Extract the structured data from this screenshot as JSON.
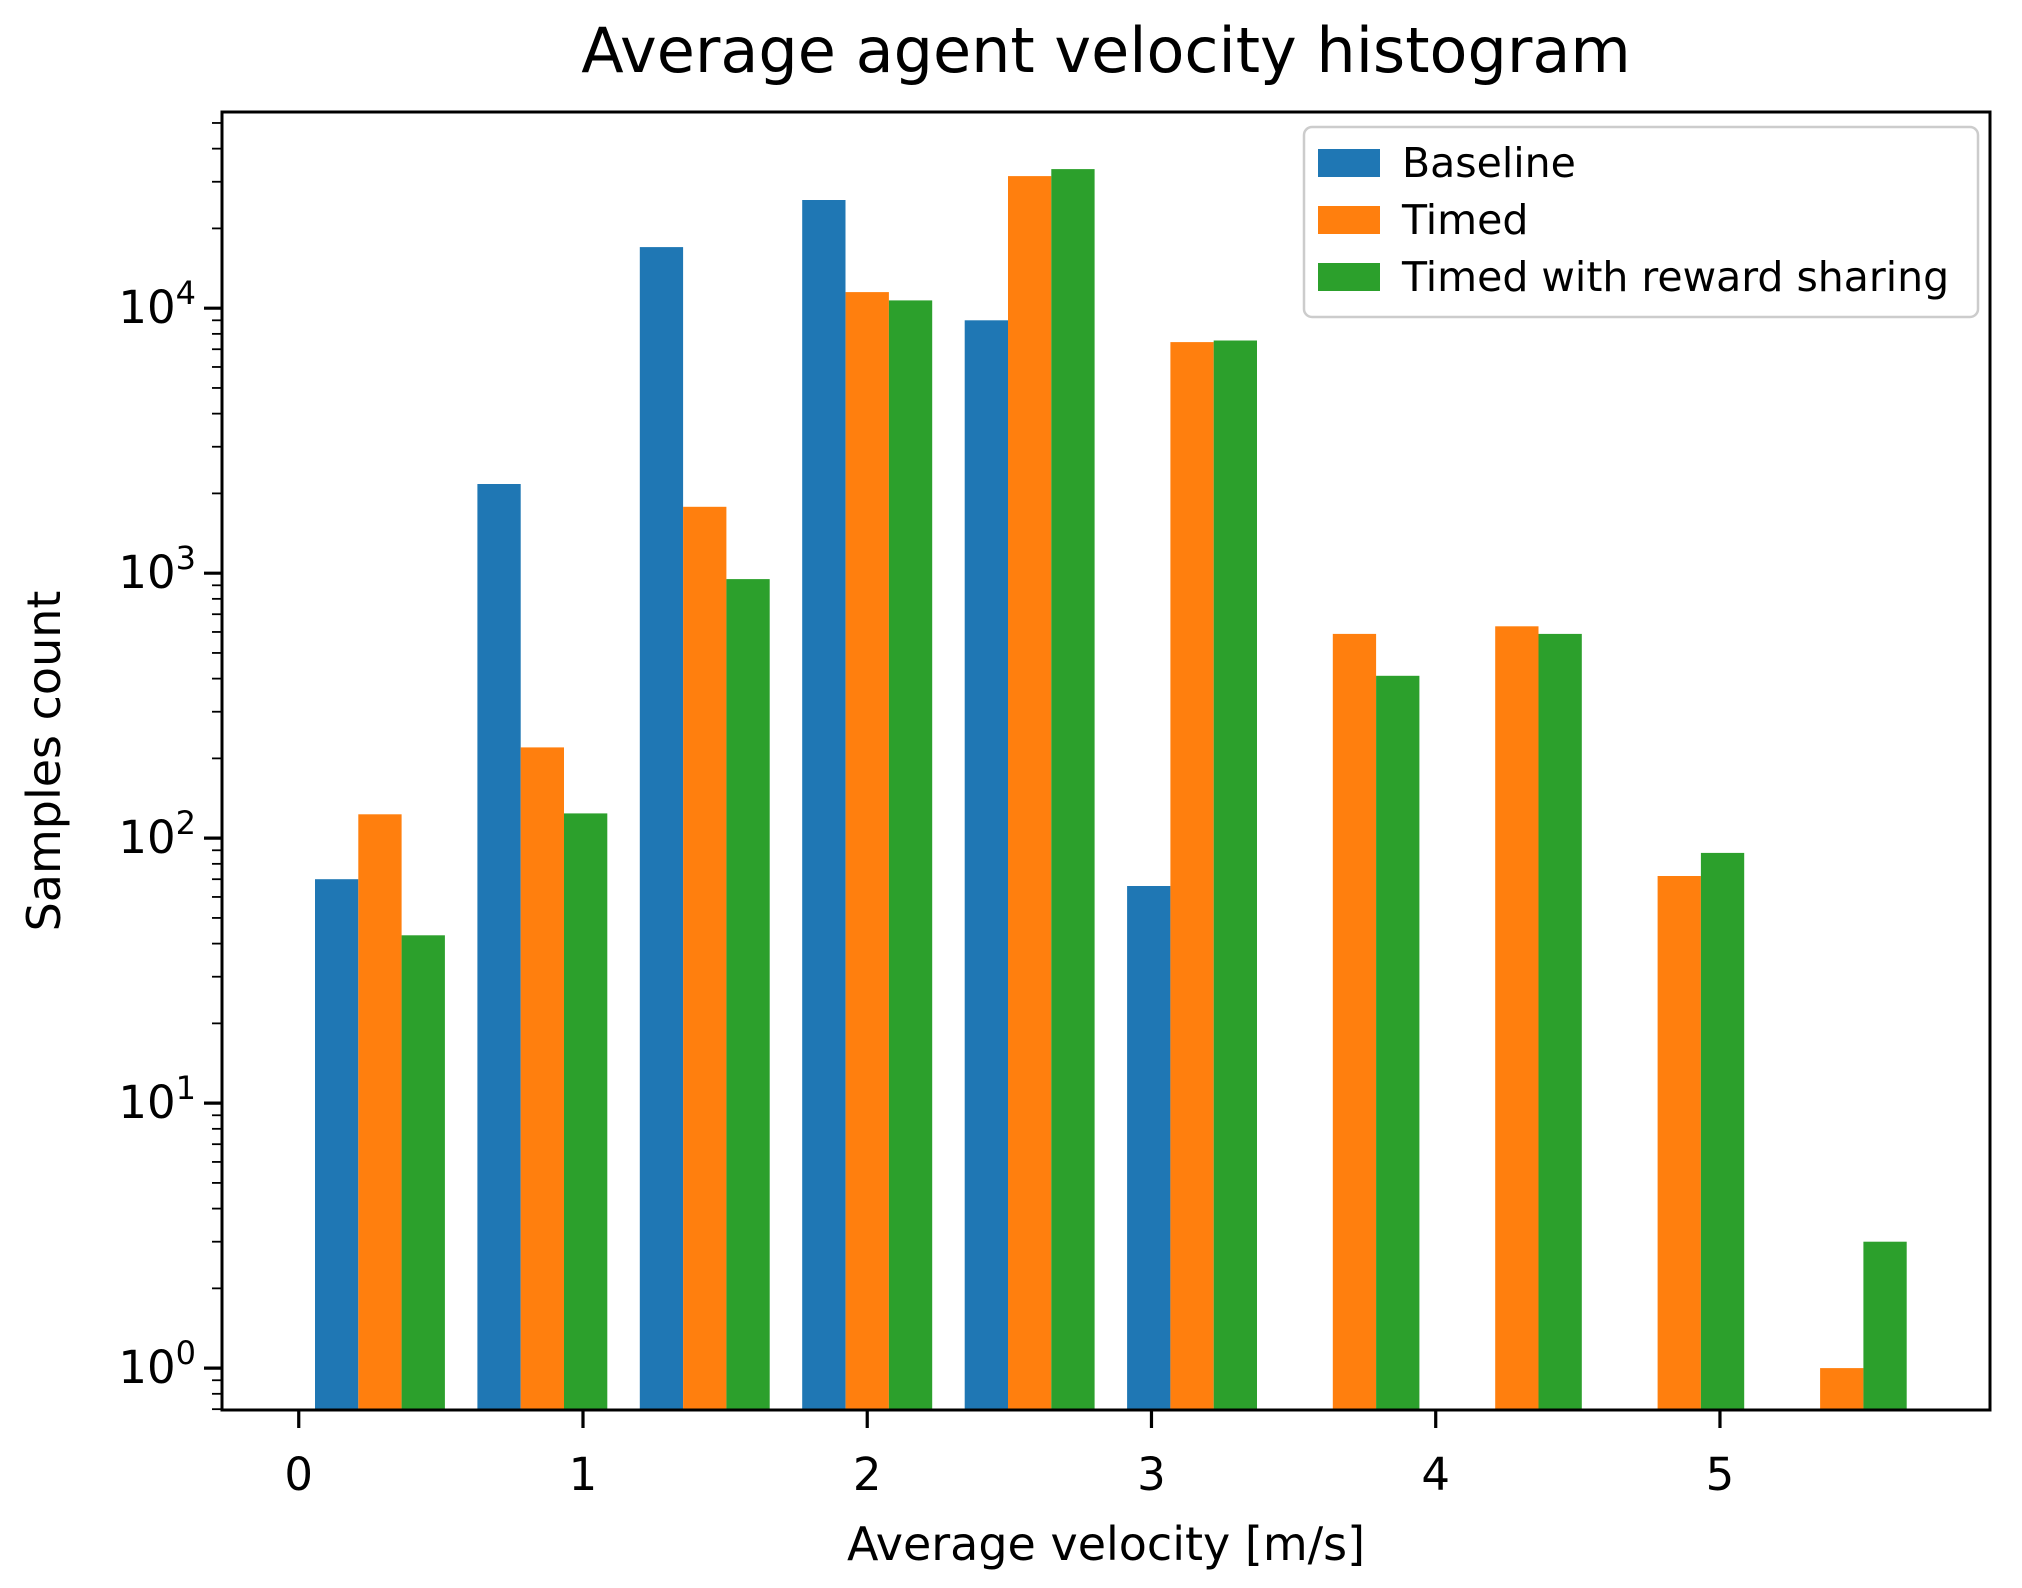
{
  "title": "Average agent velocity histogram",
  "chart_data": {
    "type": "bar",
    "subtype": "grouped-histogram",
    "title": "Average agent velocity histogram",
    "xlabel": "Average velocity [m/s]",
    "ylabel": "Samples count",
    "yscale": "log",
    "grid": false,
    "xlim": [
      -0.27,
      5.95
    ],
    "ylim": [
      0.695,
      55000
    ],
    "xticks": [
      0,
      1,
      2,
      3,
      4,
      5
    ],
    "ytick_exponents": [
      0,
      1,
      2,
      3,
      4
    ],
    "bins": {
      "start": 0.0,
      "width": 0.5714,
      "count": 10,
      "group_fill": 0.8
    },
    "bin_centers": [
      0.29,
      0.86,
      1.43,
      2.0,
      2.57,
      3.14,
      3.71,
      4.29,
      4.86,
      5.43
    ],
    "series": [
      {
        "name": "Baseline",
        "color": "#1f77b4",
        "values": [
          70,
          2170,
          17000,
          25600,
          9000,
          66,
          0,
          0,
          0,
          0
        ]
      },
      {
        "name": "Timed",
        "color": "#ff7f0e",
        "values": [
          123,
          220,
          1780,
          11500,
          31500,
          7450,
          590,
          630,
          72,
          1
        ]
      },
      {
        "name": "Timed with reward sharing",
        "color": "#2ca02c",
        "values": [
          43,
          124,
          950,
          10700,
          33500,
          7550,
          410,
          590,
          88,
          3
        ]
      }
    ],
    "legend": {
      "position": "upper right",
      "labels": [
        "Baseline",
        "Timed",
        "Timed with reward sharing"
      ]
    },
    "axis_color": "#000000",
    "background_color": "#ffffff"
  }
}
